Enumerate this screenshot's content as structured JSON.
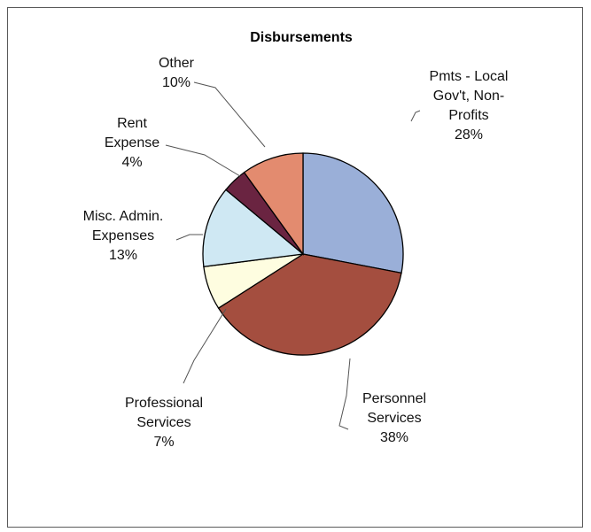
{
  "chart_data": {
    "type": "pie",
    "title": "Disbursements",
    "slices": [
      {
        "name": "Pmts - Local Gov't, Non-Profits",
        "label_lines": [
          "Pmts - Local",
          "Gov't, Non-",
          "Profits"
        ],
        "value": 28,
        "percent_label": "28%",
        "color": "#9aafd8"
      },
      {
        "name": "Personnel Services",
        "label_lines": [
          "Personnel",
          "Services"
        ],
        "value": 38,
        "percent_label": "38%",
        "color": "#a44e3f"
      },
      {
        "name": "Professional Services",
        "label_lines": [
          "Professional",
          "Services"
        ],
        "value": 7,
        "percent_label": "7%",
        "color": "#fefde0"
      },
      {
        "name": "Misc. Admin. Expenses",
        "label_lines": [
          "Misc. Admin.",
          "Expenses"
        ],
        "value": 13,
        "percent_label": "13%",
        "color": "#cfe8f3"
      },
      {
        "name": "Rent Expense",
        "label_lines": [
          "Rent",
          "Expense"
        ],
        "value": 4,
        "percent_label": "4%",
        "color": "#6a2441"
      },
      {
        "name": "Other",
        "label_lines": [
          "Other"
        ],
        "value": 10,
        "percent_label": "10%",
        "color": "#e38b6f"
      }
    ],
    "start_angle": "12 o'clock",
    "direction": "clockwise",
    "legend": "none"
  }
}
